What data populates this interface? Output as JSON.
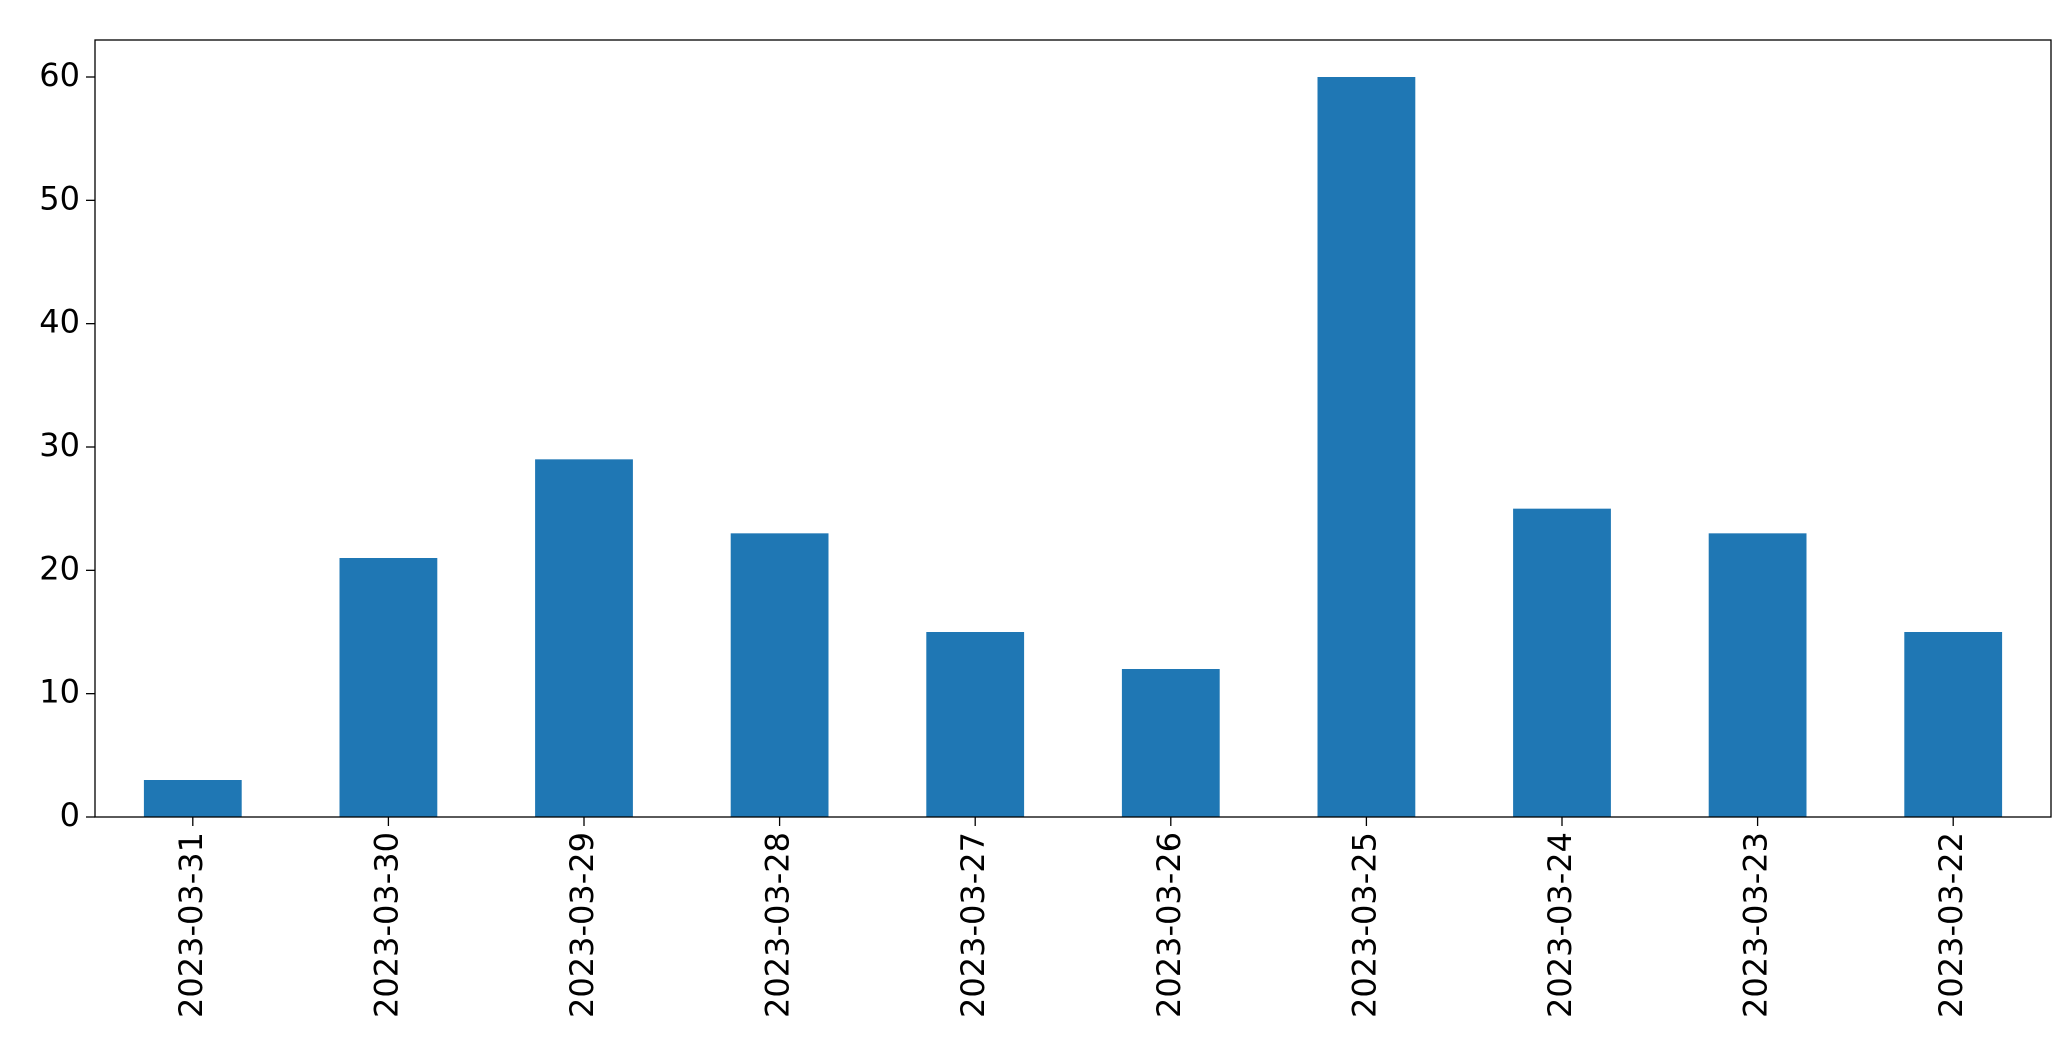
{
  "chart_data": {
    "type": "bar",
    "categories": [
      "2023-03-31",
      "2023-03-30",
      "2023-03-29",
      "2023-03-28",
      "2023-03-27",
      "2023-03-26",
      "2023-03-25",
      "2023-03-24",
      "2023-03-23",
      "2023-03-22"
    ],
    "values": [
      3,
      21,
      29,
      23,
      15,
      12,
      60,
      25,
      23,
      15
    ],
    "color": "#1f77b4",
    "ylim": [
      0,
      63
    ],
    "yticks": [
      0,
      10,
      20,
      30,
      40,
      50,
      60
    ],
    "grid": false
  }
}
